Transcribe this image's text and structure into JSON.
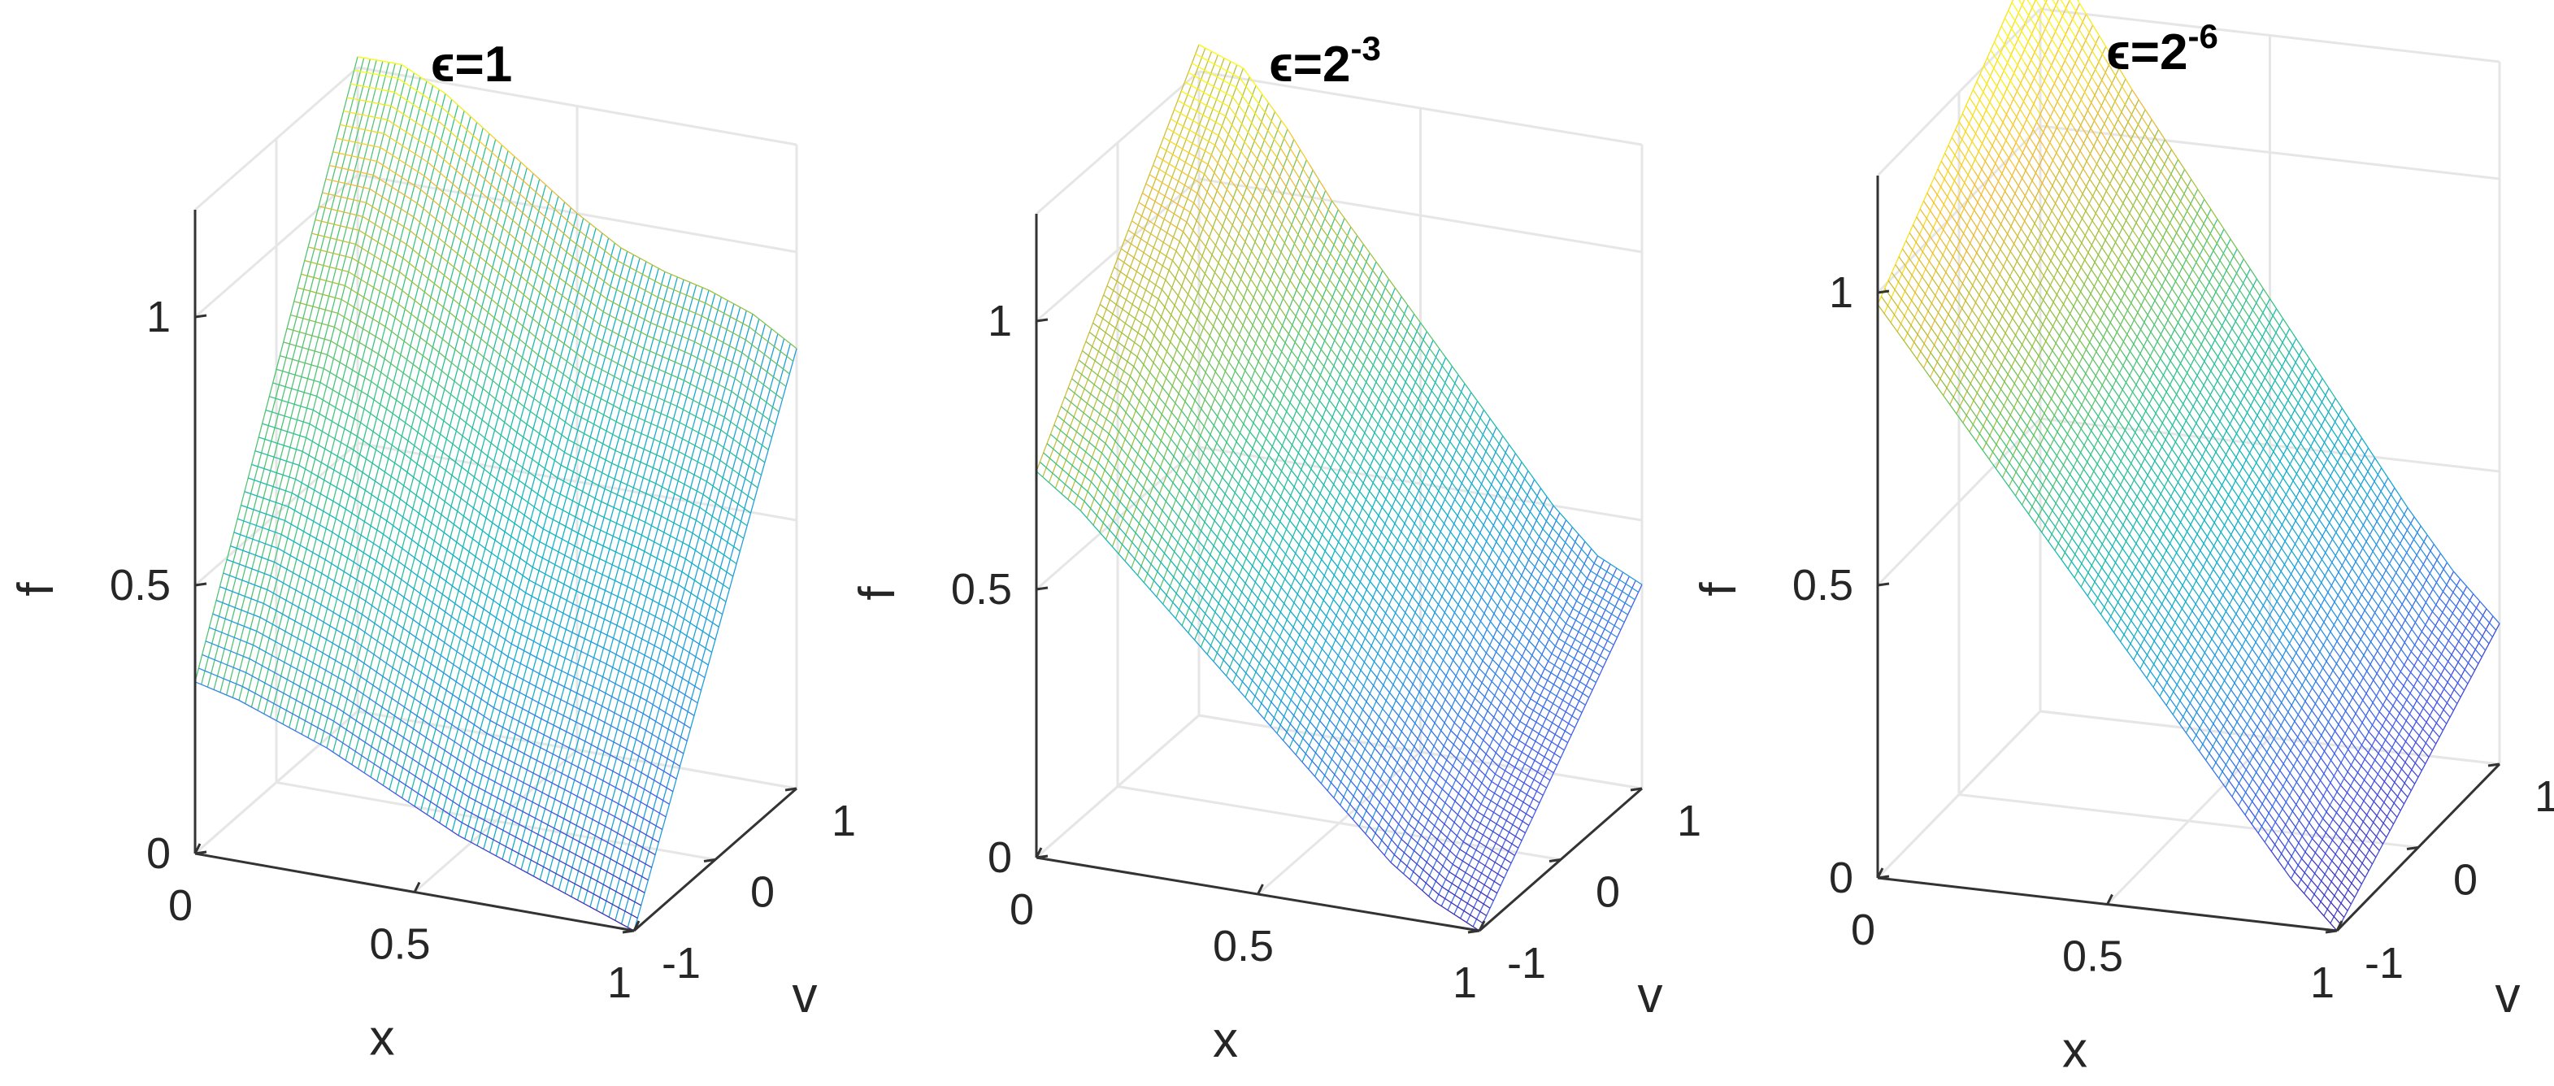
{
  "chart_data": [
    {
      "type": "surface",
      "title": "ε=1",
      "title_parts": {
        "base": "ϵ=1",
        "exp": ""
      },
      "xlabel": "x",
      "ylabel": "v",
      "zlabel": "f",
      "x_ticks": [
        "0",
        "0.5",
        "1"
      ],
      "v_ticks": [
        "-1",
        "0",
        "1"
      ],
      "z_ticks": [
        "0",
        "0.5",
        "1"
      ],
      "xlim": [
        0,
        1
      ],
      "vlim": [
        -1,
        1
      ],
      "zlim": [
        0,
        1
      ],
      "grid": true,
      "colormap": "parula",
      "surface": {
        "x": [
          0,
          0.1,
          0.2,
          0.3,
          0.4,
          0.5,
          0.6,
          0.7,
          0.8,
          0.9,
          1.0
        ],
        "f_at_v_plus1": [
          1.22,
          1.22,
          1.18,
          1.12,
          1.06,
          1.0,
          0.95,
          0.92,
          0.9,
          0.87,
          0.82
        ],
        "f_at_v_minus1": [
          0.32,
          0.3,
          0.27,
          0.24,
          0.2,
          0.16,
          0.12,
          0.09,
          0.06,
          0.03,
          0.0
        ]
      }
    },
    {
      "type": "surface",
      "title": "ε=2^-3",
      "title_parts": {
        "base": "ϵ=2",
        "exp": "-3"
      },
      "xlabel": "x",
      "ylabel": "v",
      "zlabel": "f",
      "x_ticks": [
        "0",
        "0.5",
        "1"
      ],
      "v_ticks": [
        "-1",
        "0",
        "1"
      ],
      "z_ticks": [
        "0",
        "0.5",
        "1"
      ],
      "xlim": [
        0,
        1
      ],
      "vlim": [
        -1,
        1
      ],
      "zlim": [
        0,
        1
      ],
      "grid": true,
      "colormap": "parula",
      "surface": {
        "x": [
          0,
          0.1,
          0.2,
          0.3,
          0.4,
          0.5,
          0.6,
          0.7,
          0.8,
          0.9,
          1.0
        ],
        "f_at_v_plus1": [
          1.25,
          1.22,
          1.12,
          1.0,
          0.9,
          0.8,
          0.7,
          0.6,
          0.5,
          0.42,
          0.38
        ],
        "f_at_v_minus1": [
          0.72,
          0.66,
          0.58,
          0.5,
          0.42,
          0.34,
          0.26,
          0.18,
          0.1,
          0.04,
          0.0
        ]
      }
    },
    {
      "type": "surface",
      "title": "ε=2^-6",
      "title_parts": {
        "base": "ϵ=2",
        "exp": "-6"
      },
      "xlabel": "x",
      "ylabel": "v",
      "zlabel": "f",
      "x_ticks": [
        "0",
        "0.5",
        "1"
      ],
      "v_ticks": [
        "-1",
        "0",
        "1"
      ],
      "z_ticks": [
        "0",
        "0.5",
        "1"
      ],
      "xlim": [
        0,
        1
      ],
      "vlim": [
        -1,
        1
      ],
      "zlim": [
        0,
        1
      ],
      "grid": true,
      "colormap": "parula",
      "surface": {
        "x": [
          0,
          0.1,
          0.2,
          0.3,
          0.4,
          0.5,
          0.6,
          0.7,
          0.8,
          0.9,
          1.0
        ],
        "f_at_v_plus1": [
          1.32,
          1.2,
          1.08,
          0.97,
          0.86,
          0.75,
          0.64,
          0.53,
          0.42,
          0.32,
          0.24
        ],
        "f_at_v_minus1": [
          0.98,
          0.88,
          0.78,
          0.68,
          0.58,
          0.48,
          0.38,
          0.28,
          0.18,
          0.08,
          0.0
        ]
      }
    }
  ]
}
